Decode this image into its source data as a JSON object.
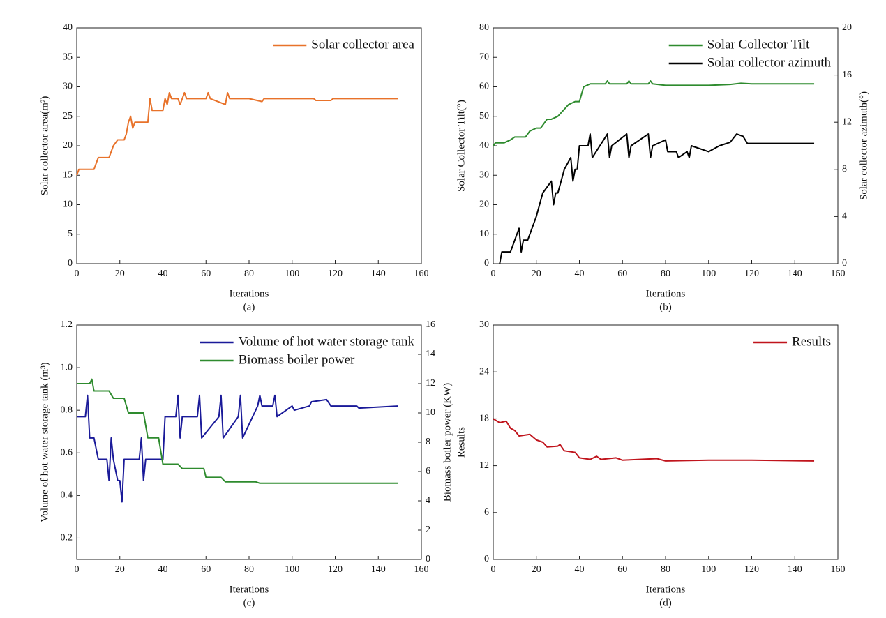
{
  "chart_data": [
    {
      "type": "line",
      "caption": "(a)",
      "xlabel": "Iterations",
      "ylabel": "Solar collector area(m²)",
      "xlim": [
        0,
        160
      ],
      "xticks": [
        0,
        20,
        40,
        60,
        80,
        100,
        120,
        140,
        160
      ],
      "ylim": [
        0,
        40
      ],
      "yticks": [
        0,
        5,
        10,
        15,
        20,
        25,
        30,
        35,
        40
      ],
      "legend": "upper right",
      "series": [
        {
          "name": "Solar collector area",
          "color": "#e8722a",
          "x": [
            0,
            1,
            2,
            8,
            10,
            15,
            17,
            19,
            22,
            23,
            24,
            25,
            26,
            27,
            33,
            34,
            35,
            40,
            41,
            42,
            43,
            44,
            46,
            47,
            48,
            49,
            50,
            51,
            52,
            60,
            61,
            62,
            69,
            70,
            71,
            78,
            79,
            80,
            86,
            87,
            88,
            95,
            96,
            110,
            111,
            118,
            119,
            130,
            149
          ],
          "values": [
            15,
            16,
            16,
            16,
            18,
            18,
            20,
            21,
            21,
            22,
            24,
            25,
            23,
            24,
            24,
            28,
            26,
            26,
            28,
            27,
            29,
            28,
            28,
            28,
            27,
            28,
            29,
            28,
            28,
            28,
            29,
            28,
            27,
            29,
            28,
            28,
            28,
            28,
            27.5,
            28,
            28,
            28,
            28,
            28,
            27.7,
            27.7,
            28,
            28,
            28
          ]
        }
      ]
    },
    {
      "type": "line",
      "caption": "(b)",
      "xlabel": "Iterations",
      "ylabel": "Solar Collector Tilt(°)",
      "y2label": "Solar collector azimuth(°)",
      "xlim": [
        0,
        160
      ],
      "xticks": [
        0,
        20,
        40,
        60,
        80,
        100,
        120,
        140,
        160
      ],
      "ylim": [
        0,
        80
      ],
      "yticks": [
        0,
        10,
        20,
        30,
        40,
        50,
        60,
        70,
        80
      ],
      "y2lim": [
        0,
        20
      ],
      "y2ticks": [
        0,
        4,
        8,
        12,
        16,
        20
      ],
      "legend": "upper right",
      "series": [
        {
          "name": "Solar Collector Tilt",
          "color": "#2e8b2e",
          "x": [
            0,
            1,
            5,
            8,
            10,
            15,
            17,
            20,
            22,
            25,
            27,
            30,
            35,
            38,
            40,
            42,
            45,
            52,
            53,
            54,
            62,
            63,
            64,
            72,
            73,
            74,
            80,
            90,
            100,
            110,
            115,
            120,
            149
          ],
          "values": [
            40,
            41,
            41,
            42,
            43,
            43,
            45,
            46,
            46,
            49,
            49,
            50,
            54,
            55,
            55,
            60,
            61,
            61,
            62,
            61,
            61,
            62,
            61,
            61,
            62,
            61,
            60.5,
            60.5,
            60.5,
            60.8,
            61.2,
            61,
            61
          ]
        },
        {
          "name": "Solar collector azimuth",
          "color": "#000000",
          "axis": "y2",
          "x": [
            3,
            4,
            8,
            10,
            12,
            13,
            14,
            16,
            18,
            20,
            23,
            27,
            28,
            29,
            30,
            33,
            36,
            37,
            38,
            39,
            40,
            44,
            45,
            46,
            53,
            54,
            55,
            62,
            63,
            64,
            72,
            73,
            74,
            80,
            81,
            85,
            86,
            90,
            91,
            92,
            100,
            105,
            110,
            113,
            116,
            118,
            125,
            130,
            149
          ],
          "values": [
            0,
            1,
            1,
            2,
            3,
            1,
            2,
            2,
            3,
            4,
            6,
            7,
            5,
            6,
            6,
            8,
            9,
            7,
            8,
            8,
            10,
            10,
            11,
            9,
            11,
            9,
            10,
            11,
            9,
            10,
            11,
            9,
            10,
            10.5,
            9.5,
            9.5,
            9,
            9.5,
            9,
            10,
            9.5,
            10,
            10.3,
            11,
            10.8,
            10.2,
            10.2,
            10.2,
            10.2
          ]
        }
      ]
    },
    {
      "type": "line",
      "caption": "(c)",
      "xlabel": "Iterations",
      "ylabel": "Volume of hot water storage tank (m³)",
      "y2label": "Biomass boiler power (KW)",
      "xlim": [
        0,
        160
      ],
      "xticks": [
        0,
        20,
        40,
        60,
        80,
        100,
        120,
        140,
        160
      ],
      "ylim": [
        0.1,
        1.2
      ],
      "yticks": [
        0.2,
        0.4,
        0.6,
        0.8,
        {
          "value": 1,
          "label": "1.0"
        },
        1.2
      ],
      "y2lim": [
        0,
        16
      ],
      "y2ticks": [
        0,
        2,
        4,
        6,
        8,
        10,
        12,
        14,
        16
      ],
      "legend": "upper right",
      "series": [
        {
          "name": "Volume of hot water storage tank",
          "color": "#1a1a99",
          "x": [
            0,
            4,
            5,
            6,
            8,
            10,
            14,
            15,
            16,
            17,
            19,
            20,
            21,
            22,
            29,
            30,
            31,
            32,
            40,
            41,
            46,
            47,
            48,
            49,
            56,
            57,
            58,
            66,
            67,
            68,
            75,
            76,
            77,
            84,
            85,
            86,
            91,
            92,
            93,
            100,
            101,
            108,
            109,
            116,
            118,
            130,
            131,
            149
          ],
          "values": [
            0.77,
            0.77,
            0.87,
            0.67,
            0.67,
            0.57,
            0.57,
            0.47,
            0.67,
            0.57,
            0.47,
            0.47,
            0.37,
            0.57,
            0.57,
            0.67,
            0.47,
            0.57,
            0.57,
            0.77,
            0.77,
            0.87,
            0.67,
            0.77,
            0.77,
            0.87,
            0.67,
            0.77,
            0.87,
            0.67,
            0.77,
            0.87,
            0.67,
            0.82,
            0.87,
            0.82,
            0.82,
            0.87,
            0.77,
            0.82,
            0.8,
            0.82,
            0.84,
            0.85,
            0.82,
            0.82,
            0.81,
            0.82
          ]
        },
        {
          "name": "Biomass boiler power",
          "color": "#2e8b2e",
          "axis": "y2",
          "x": [
            0,
            6,
            7,
            8,
            15,
            17,
            22,
            24,
            31,
            33,
            38,
            40,
            47,
            49,
            59,
            60,
            67,
            69,
            83,
            85,
            149
          ],
          "values": [
            12,
            12,
            12.3,
            11.5,
            11.5,
            11,
            11,
            10,
            10,
            8.3,
            8.3,
            6.5,
            6.5,
            6.2,
            6.2,
            5.6,
            5.6,
            5.3,
            5.3,
            5.2,
            5.2
          ]
        }
      ]
    },
    {
      "type": "line",
      "caption": "(d)",
      "xlabel": "Iterations",
      "ylabel": "Results",
      "xlim": [
        0,
        160
      ],
      "xticks": [
        0,
        20,
        40,
        60,
        80,
        100,
        120,
        140,
        160
      ],
      "ylim": [
        0,
        30
      ],
      "yticks": [
        0,
        6,
        12,
        18,
        24,
        30
      ],
      "legend": "upper right",
      "series": [
        {
          "name": "Results",
          "color": "#c0141c",
          "x": [
            0,
            3,
            6,
            8,
            10,
            12,
            17,
            20,
            23,
            25,
            30,
            31,
            33,
            38,
            40,
            45,
            48,
            50,
            57,
            60,
            76,
            80,
            100,
            120,
            149
          ],
          "values": [
            18,
            17.5,
            17.7,
            16.8,
            16.5,
            15.8,
            16,
            15.3,
            15,
            14.4,
            14.5,
            14.7,
            13.9,
            13.7,
            13,
            12.8,
            13.2,
            12.8,
            13,
            12.7,
            12.9,
            12.6,
            12.7,
            12.7,
            12.6
          ]
        }
      ]
    }
  ]
}
